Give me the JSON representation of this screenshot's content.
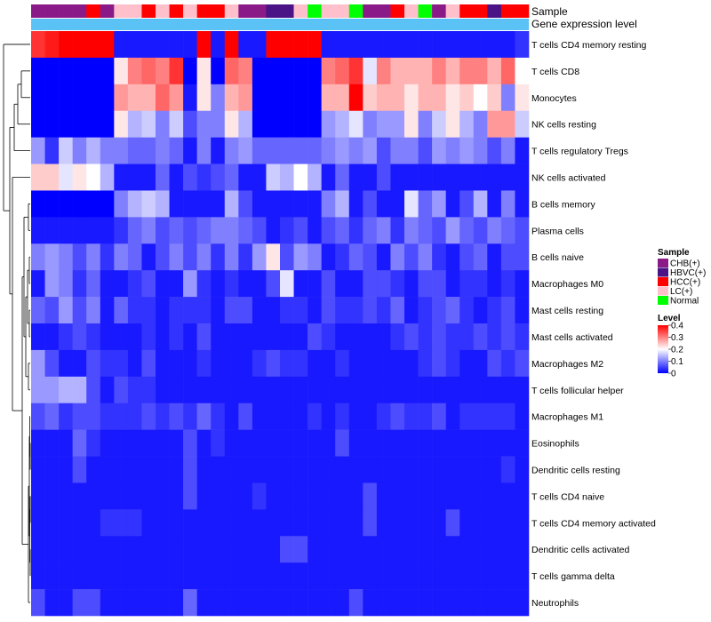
{
  "chart_data": {
    "type": "heatmap",
    "annotation_labels": [
      "Sample",
      "Gene expression level"
    ],
    "row_labels": [
      "T cells CD4 memory resting",
      "T cells CD8",
      "Monocytes",
      "NK cells resting",
      "T cells regulatory  Tregs",
      "NK cells activated",
      "B cells memory",
      "Plasma cells",
      "B cells naive",
      "Macrophages M0",
      "Mast cells resting",
      "Mast cells activated",
      "Macrophages M2",
      "T cells follicular helper",
      "Macrophages M1",
      "Eosinophils",
      "Dendritic cells resting",
      "T cells CD4 naive",
      "T cells CD4 memory activated",
      "Dendritic cells activated",
      "T cells gamma delta",
      "Neutrophils"
    ],
    "sample_groups": [
      "CHB(+)",
      "CHB(+)",
      "CHB(+)",
      "CHB(+)",
      "HCC(+)",
      "CHB(+)",
      "LC(+)",
      "LC(+)",
      "HCC(+)",
      "LC(+)",
      "HCC(+)",
      "LC(+)",
      "HCC(+)",
      "HCC(+)",
      "LC(+)",
      "CHB(+)",
      "CHB(+)",
      "HBVC(+)",
      "HBVC(+)",
      "LC(+)",
      "Normal",
      "LC(+)",
      "LC(+)",
      "Normal",
      "CHB(+)",
      "CHB(+)",
      "HCC(+)",
      "LC(+)",
      "Normal",
      "CHB(+)",
      "LC(+)",
      "HCC(+)",
      "HCC(+)",
      "HBVC(+)",
      "HCC(+)",
      "HCC(+)"
    ],
    "values": [
      [
        0.36,
        0.38,
        0.4,
        0.4,
        0.4,
        0.4,
        0.02,
        0.02,
        0.02,
        0.02,
        0.02,
        0.02,
        0.4,
        0.02,
        0.4,
        0.02,
        0.02,
        0.4,
        0.4,
        0.4,
        0.4,
        0.02,
        0.02,
        0.02,
        0.02,
        0.02,
        0.02,
        0.02,
        0.02,
        0.02,
        0.02,
        0.02,
        0.02,
        0.02,
        0.02,
        0.04
      ],
      [
        0.0,
        0.0,
        0.0,
        0.0,
        0.0,
        0.0,
        0.22,
        0.3,
        0.32,
        0.3,
        0.36,
        0.0,
        0.22,
        0.0,
        0.32,
        0.3,
        0.0,
        0.0,
        0.0,
        0.0,
        0.0,
        0.3,
        0.32,
        0.36,
        0.18,
        0.3,
        0.26,
        0.26,
        0.26,
        0.3,
        0.26,
        0.3,
        0.3,
        0.26,
        0.32,
        0.2
      ],
      [
        0.0,
        0.0,
        0.0,
        0.0,
        0.0,
        0.0,
        0.28,
        0.26,
        0.26,
        0.32,
        0.28,
        0.02,
        0.22,
        0.1,
        0.26,
        0.28,
        0.0,
        0.0,
        0.0,
        0.0,
        0.0,
        0.26,
        0.26,
        0.4,
        0.24,
        0.26,
        0.26,
        0.22,
        0.26,
        0.26,
        0.22,
        0.24,
        0.2,
        0.24,
        0.1,
        0.22
      ],
      [
        0.0,
        0.0,
        0.0,
        0.0,
        0.0,
        0.0,
        0.22,
        0.14,
        0.16,
        0.1,
        0.16,
        0.06,
        0.1,
        0.1,
        0.22,
        0.14,
        0.0,
        0.0,
        0.0,
        0.0,
        0.0,
        0.12,
        0.14,
        0.18,
        0.1,
        0.12,
        0.12,
        0.22,
        0.1,
        0.16,
        0.22,
        0.14,
        0.1,
        0.28,
        0.28,
        0.16
      ],
      [
        0.12,
        0.04,
        0.16,
        0.1,
        0.14,
        0.1,
        0.1,
        0.08,
        0.08,
        0.1,
        0.08,
        0.02,
        0.1,
        0.02,
        0.1,
        0.12,
        0.08,
        0.08,
        0.08,
        0.08,
        0.08,
        0.1,
        0.12,
        0.1,
        0.12,
        0.06,
        0.1,
        0.1,
        0.06,
        0.12,
        0.1,
        0.12,
        0.1,
        0.06,
        0.1,
        0.02
      ],
      [
        0.24,
        0.24,
        0.18,
        0.22,
        0.2,
        0.14,
        0.02,
        0.02,
        0.02,
        0.08,
        0.02,
        0.06,
        0.04,
        0.06,
        0.08,
        0.02,
        0.02,
        0.16,
        0.14,
        0.2,
        0.14,
        0.02,
        0.08,
        0.02,
        0.02,
        0.06,
        0.02,
        0.02,
        0.02,
        0.02,
        0.02,
        0.02,
        0.02,
        0.02,
        0.02,
        0.02
      ],
      [
        0.0,
        0.0,
        0.0,
        0.0,
        0.0,
        0.0,
        0.1,
        0.14,
        0.16,
        0.14,
        0.02,
        0.02,
        0.02,
        0.02,
        0.14,
        0.06,
        0.02,
        0.02,
        0.02,
        0.02,
        0.02,
        0.1,
        0.14,
        0.02,
        0.06,
        0.02,
        0.02,
        0.18,
        0.08,
        0.12,
        0.02,
        0.06,
        0.14,
        0.02,
        0.1,
        0.02
      ],
      [
        0.02,
        0.02,
        0.02,
        0.02,
        0.02,
        0.02,
        0.04,
        0.08,
        0.1,
        0.06,
        0.08,
        0.06,
        0.08,
        0.1,
        0.1,
        0.08,
        0.06,
        0.02,
        0.04,
        0.06,
        0.02,
        0.06,
        0.08,
        0.04,
        0.08,
        0.1,
        0.04,
        0.1,
        0.08,
        0.06,
        0.12,
        0.08,
        0.06,
        0.1,
        0.08,
        0.06
      ],
      [
        0.1,
        0.12,
        0.1,
        0.06,
        0.1,
        0.04,
        0.1,
        0.08,
        0.02,
        0.06,
        0.1,
        0.06,
        0.1,
        0.04,
        0.1,
        0.04,
        0.12,
        0.22,
        0.06,
        0.12,
        0.1,
        0.02,
        0.04,
        0.08,
        0.06,
        0.02,
        0.1,
        0.06,
        0.1,
        0.04,
        0.02,
        0.06,
        0.08,
        0.02,
        0.06,
        0.06
      ],
      [
        0.02,
        0.12,
        0.1,
        0.04,
        0.08,
        0.02,
        0.02,
        0.04,
        0.06,
        0.02,
        0.02,
        0.12,
        0.04,
        0.02,
        0.04,
        0.02,
        0.02,
        0.06,
        0.18,
        0.02,
        0.02,
        0.06,
        0.02,
        0.02,
        0.06,
        0.06,
        0.04,
        0.02,
        0.06,
        0.06,
        0.02,
        0.04,
        0.04,
        0.02,
        0.04,
        0.02
      ],
      [
        0.08,
        0.06,
        0.12,
        0.06,
        0.1,
        0.02,
        0.08,
        0.04,
        0.04,
        0.02,
        0.04,
        0.04,
        0.04,
        0.02,
        0.06,
        0.06,
        0.02,
        0.02,
        0.04,
        0.04,
        0.02,
        0.06,
        0.04,
        0.04,
        0.06,
        0.04,
        0.08,
        0.02,
        0.04,
        0.06,
        0.08,
        0.04,
        0.02,
        0.04,
        0.06,
        0.02
      ],
      [
        0.02,
        0.02,
        0.04,
        0.06,
        0.04,
        0.02,
        0.02,
        0.02,
        0.04,
        0.02,
        0.04,
        0.02,
        0.06,
        0.02,
        0.02,
        0.02,
        0.02,
        0.02,
        0.02,
        0.02,
        0.06,
        0.04,
        0.02,
        0.02,
        0.02,
        0.02,
        0.04,
        0.06,
        0.04,
        0.06,
        0.04,
        0.04,
        0.06,
        0.04,
        0.06,
        0.04
      ],
      [
        0.12,
        0.06,
        0.02,
        0.02,
        0.06,
        0.04,
        0.04,
        0.02,
        0.06,
        0.02,
        0.02,
        0.02,
        0.04,
        0.02,
        0.02,
        0.02,
        0.04,
        0.06,
        0.04,
        0.04,
        0.02,
        0.02,
        0.04,
        0.02,
        0.02,
        0.02,
        0.02,
        0.02,
        0.04,
        0.06,
        0.04,
        0.02,
        0.02,
        0.06,
        0.04,
        0.06
      ],
      [
        0.12,
        0.12,
        0.14,
        0.14,
        0.06,
        0.02,
        0.06,
        0.04,
        0.04,
        0.02,
        0.02,
        0.02,
        0.02,
        0.02,
        0.02,
        0.02,
        0.02,
        0.02,
        0.02,
        0.02,
        0.02,
        0.02,
        0.02,
        0.02,
        0.02,
        0.02,
        0.02,
        0.02,
        0.02,
        0.02,
        0.02,
        0.02,
        0.02,
        0.02,
        0.02,
        0.02
      ],
      [
        0.06,
        0.08,
        0.04,
        0.06,
        0.06,
        0.04,
        0.04,
        0.04,
        0.06,
        0.04,
        0.06,
        0.04,
        0.08,
        0.04,
        0.02,
        0.06,
        0.02,
        0.02,
        0.02,
        0.02,
        0.04,
        0.02,
        0.04,
        0.02,
        0.02,
        0.04,
        0.06,
        0.04,
        0.04,
        0.06,
        0.02,
        0.04,
        0.04,
        0.04,
        0.04,
        0.02
      ],
      [
        0.02,
        0.02,
        0.02,
        0.08,
        0.04,
        0.02,
        0.02,
        0.02,
        0.02,
        0.02,
        0.02,
        0.06,
        0.02,
        0.04,
        0.02,
        0.02,
        0.02,
        0.02,
        0.02,
        0.02,
        0.02,
        0.02,
        0.06,
        0.02,
        0.02,
        0.02,
        0.02,
        0.02,
        0.02,
        0.02,
        0.02,
        0.02,
        0.02,
        0.02,
        0.02,
        0.02
      ],
      [
        0.02,
        0.02,
        0.02,
        0.06,
        0.02,
        0.02,
        0.02,
        0.02,
        0.02,
        0.02,
        0.02,
        0.06,
        0.02,
        0.02,
        0.02,
        0.02,
        0.02,
        0.02,
        0.02,
        0.02,
        0.02,
        0.02,
        0.02,
        0.02,
        0.02,
        0.02,
        0.02,
        0.02,
        0.02,
        0.02,
        0.02,
        0.02,
        0.02,
        0.02,
        0.04,
        0.02
      ],
      [
        0.02,
        0.02,
        0.02,
        0.02,
        0.02,
        0.02,
        0.02,
        0.02,
        0.02,
        0.02,
        0.02,
        0.06,
        0.02,
        0.02,
        0.02,
        0.02,
        0.04,
        0.02,
        0.02,
        0.02,
        0.02,
        0.02,
        0.02,
        0.02,
        0.06,
        0.02,
        0.02,
        0.02,
        0.02,
        0.02,
        0.02,
        0.02,
        0.02,
        0.02,
        0.02,
        0.02
      ],
      [
        0.02,
        0.02,
        0.02,
        0.02,
        0.02,
        0.04,
        0.04,
        0.04,
        0.02,
        0.02,
        0.02,
        0.02,
        0.02,
        0.02,
        0.02,
        0.02,
        0.02,
        0.02,
        0.02,
        0.02,
        0.02,
        0.02,
        0.02,
        0.02,
        0.06,
        0.02,
        0.02,
        0.02,
        0.02,
        0.02,
        0.06,
        0.02,
        0.02,
        0.02,
        0.02,
        0.02
      ],
      [
        0.02,
        0.02,
        0.02,
        0.02,
        0.02,
        0.02,
        0.02,
        0.02,
        0.02,
        0.02,
        0.02,
        0.02,
        0.02,
        0.02,
        0.02,
        0.02,
        0.02,
        0.02,
        0.06,
        0.06,
        0.02,
        0.02,
        0.02,
        0.02,
        0.02,
        0.02,
        0.02,
        0.02,
        0.02,
        0.02,
        0.02,
        0.02,
        0.02,
        0.02,
        0.02,
        0.02
      ],
      [
        0.02,
        0.02,
        0.02,
        0.02,
        0.02,
        0.02,
        0.02,
        0.02,
        0.02,
        0.02,
        0.02,
        0.02,
        0.02,
        0.02,
        0.02,
        0.02,
        0.02,
        0.02,
        0.02,
        0.02,
        0.02,
        0.02,
        0.02,
        0.02,
        0.02,
        0.02,
        0.02,
        0.02,
        0.02,
        0.02,
        0.02,
        0.02,
        0.02,
        0.02,
        0.02,
        0.02
      ],
      [
        0.06,
        0.02,
        0.02,
        0.06,
        0.06,
        0.02,
        0.02,
        0.02,
        0.02,
        0.02,
        0.02,
        0.08,
        0.02,
        0.02,
        0.02,
        0.02,
        0.02,
        0.02,
        0.02,
        0.02,
        0.02,
        0.02,
        0.02,
        0.06,
        0.02,
        0.02,
        0.02,
        0.02,
        0.02,
        0.02,
        0.02,
        0.02,
        0.02,
        0.02,
        0.02,
        0.02
      ]
    ],
    "color_scale": {
      "min": 0,
      "max": 0.4,
      "low": "#0000ff",
      "mid": "#ffffff",
      "high": "#ff0000"
    },
    "gene_expression_color": "#5bc2f5",
    "legend": {
      "sample_title": "Sample",
      "sample_items": [
        {
          "label": "CHB(+)",
          "color": "#8b1a89"
        },
        {
          "label": "HBVC(+)",
          "color": "#4a1486"
        },
        {
          "label": "HCC(+)",
          "color": "#ff0000"
        },
        {
          "label": "LC(+)",
          "color": "#ffc0cb"
        },
        {
          "label": "Normal",
          "color": "#00ff00"
        }
      ],
      "level_title": "Level",
      "level_ticks": [
        "0.4",
        "0.3",
        "0.2",
        "0.1",
        "0"
      ]
    }
  }
}
